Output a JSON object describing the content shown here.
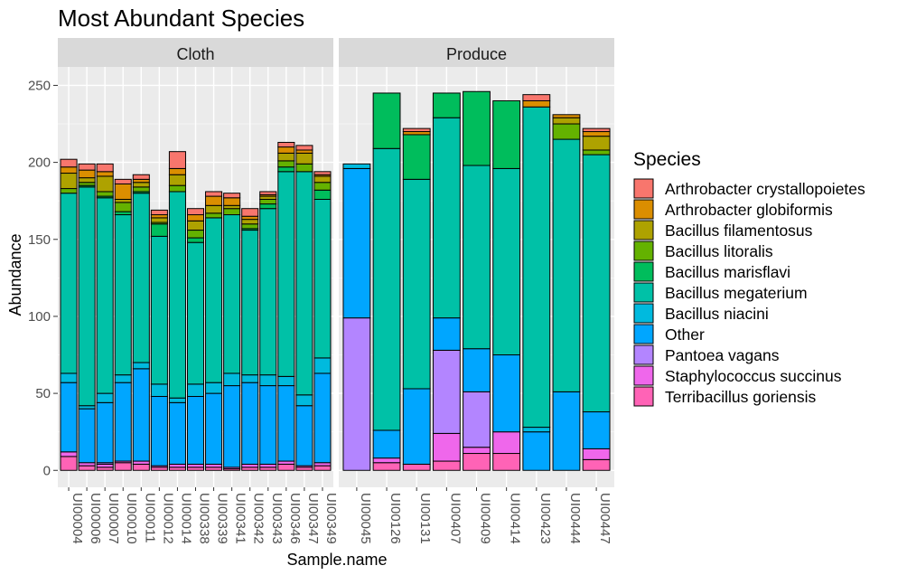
{
  "chart_data": {
    "type": "bar",
    "stacked": true,
    "title": "Most Abundant Species",
    "xlabel": "Sample.name",
    "ylabel": "Abundance",
    "ylim": [
      -11,
      262
    ],
    "yticks": [
      0,
      50,
      100,
      150,
      200,
      250
    ],
    "grid": true,
    "legend": {
      "title": "Species",
      "position": "right"
    },
    "species": [
      {
        "name": "Arthrobacter crystallopoietes",
        "color": "#F8766D"
      },
      {
        "name": "Arthrobacter globiformis",
        "color": "#DB8E00"
      },
      {
        "name": "Bacillus filamentosus",
        "color": "#AEA200"
      },
      {
        "name": "Bacillus litoralis",
        "color": "#64B200"
      },
      {
        "name": "Bacillus marisflavi",
        "color": "#00BD5C"
      },
      {
        "name": "Bacillus megaterium",
        "color": "#00C1A7"
      },
      {
        "name": "Bacillus niacini",
        "color": "#00BADE"
      },
      {
        "name": "Other",
        "color": "#00A6FF"
      },
      {
        "name": "Pantoea vagans",
        "color": "#B385FF"
      },
      {
        "name": "Staphylococcus succinus",
        "color": "#EF67EB"
      },
      {
        "name": "Terribacillus goriensis",
        "color": "#FF63B6"
      }
    ],
    "panels": [
      {
        "label": "Cloth",
        "samples": [
          {
            "name": "UI00004",
            "values": [
              5,
              4,
              10,
              3,
              0,
              117,
              6,
              45,
              0,
              3,
              9
            ]
          },
          {
            "name": "UI00006",
            "values": [
              4,
              5,
              3,
              2,
              1,
              142,
              2,
              35,
              0,
              2,
              3
            ]
          },
          {
            "name": "UI00007",
            "values": [
              5,
              3,
              10,
              3,
              1,
              127,
              6,
              39,
              1,
              2,
              2
            ]
          },
          {
            "name": "UI00010",
            "values": [
              3,
              10,
              2,
              6,
              2,
              104,
              5,
              51,
              0,
              1,
              5
            ]
          },
          {
            "name": "UI00011",
            "values": [
              3,
              2,
              3,
              3,
              1,
              110,
              4,
              60,
              0,
              2,
              4
            ]
          },
          {
            "name": "UI00012",
            "values": [
              3,
              2,
              3,
              1,
              8,
              96,
              8,
              45,
              0,
              1,
              2
            ]
          },
          {
            "name": "UI00014",
            "values": [
              11,
              4,
              7,
              4,
              0,
              134,
              3,
              40,
              0,
              2,
              2
            ]
          },
          {
            "name": "UI00338",
            "values": [
              4,
              4,
              6,
              5,
              3,
              92,
              8,
              44,
              0,
              2,
              2
            ]
          },
          {
            "name": "UI00339",
            "values": [
              3,
              6,
              5,
              3,
              0,
              107,
              7,
              46,
              0,
              2,
              2
            ]
          },
          {
            "name": "UI00341",
            "values": [
              3,
              5,
              2,
              4,
              0,
              103,
              8,
              53,
              0,
              1,
              1
            ]
          },
          {
            "name": "UI00342",
            "values": [
              5,
              2,
              3,
              3,
              1,
              94,
              5,
              53,
              0,
              2,
              2
            ]
          },
          {
            "name": "UI00343",
            "values": [
              2,
              1,
              2,
              3,
              3,
              108,
              7,
              51,
              0,
              2,
              2
            ]
          },
          {
            "name": "UI00346",
            "values": [
              3,
              4,
              5,
              4,
              3,
              133,
              6,
              49,
              0,
              2,
              4
            ]
          },
          {
            "name": "UI00347",
            "values": [
              3,
              2,
              7,
              5,
              0,
              145,
              7,
              39,
              0,
              1,
              2
            ]
          },
          {
            "name": "UI00349",
            "values": [
              2,
              1,
              4,
              5,
              6,
              103,
              10,
              58,
              0,
              2,
              3
            ]
          }
        ]
      },
      {
        "label": "Produce",
        "samples": [
          {
            "name": "UI00045",
            "values": [
              0,
              0,
              0,
              0,
              0,
              0,
              3,
              97,
              99,
              0,
              0
            ]
          },
          {
            "name": "UI00126",
            "values": [
              0,
              0,
              0,
              0,
              36,
              183,
              0,
              18,
              0,
              3,
              5
            ]
          },
          {
            "name": "UI00131",
            "values": [
              2,
              2,
              0,
              0,
              29,
              136,
              0,
              49,
              0,
              0,
              4
            ]
          },
          {
            "name": "UI00407",
            "values": [
              0,
              0,
              0,
              0,
              16,
              130,
              0,
              21,
              54,
              18,
              6
            ]
          },
          {
            "name": "UI00409",
            "values": [
              0,
              0,
              0,
              0,
              48,
              119,
              0,
              28,
              36,
              4,
              11
            ]
          },
          {
            "name": "UI00414",
            "values": [
              0,
              0,
              0,
              0,
              44,
              121,
              0,
              50,
              0,
              14,
              11
            ]
          },
          {
            "name": "UI00423",
            "values": [
              4,
              4,
              0,
              0,
              0,
              208,
              3,
              25,
              0,
              0,
              0
            ]
          },
          {
            "name": "UI00444",
            "values": [
              0,
              2,
              4,
              10,
              0,
              164,
              0,
              51,
              0,
              0,
              0
            ]
          },
          {
            "name": "UI00447",
            "values": [
              2,
              3,
              9,
              3,
              0,
              167,
              0,
              24,
              0,
              7,
              7
            ]
          }
        ]
      }
    ]
  }
}
